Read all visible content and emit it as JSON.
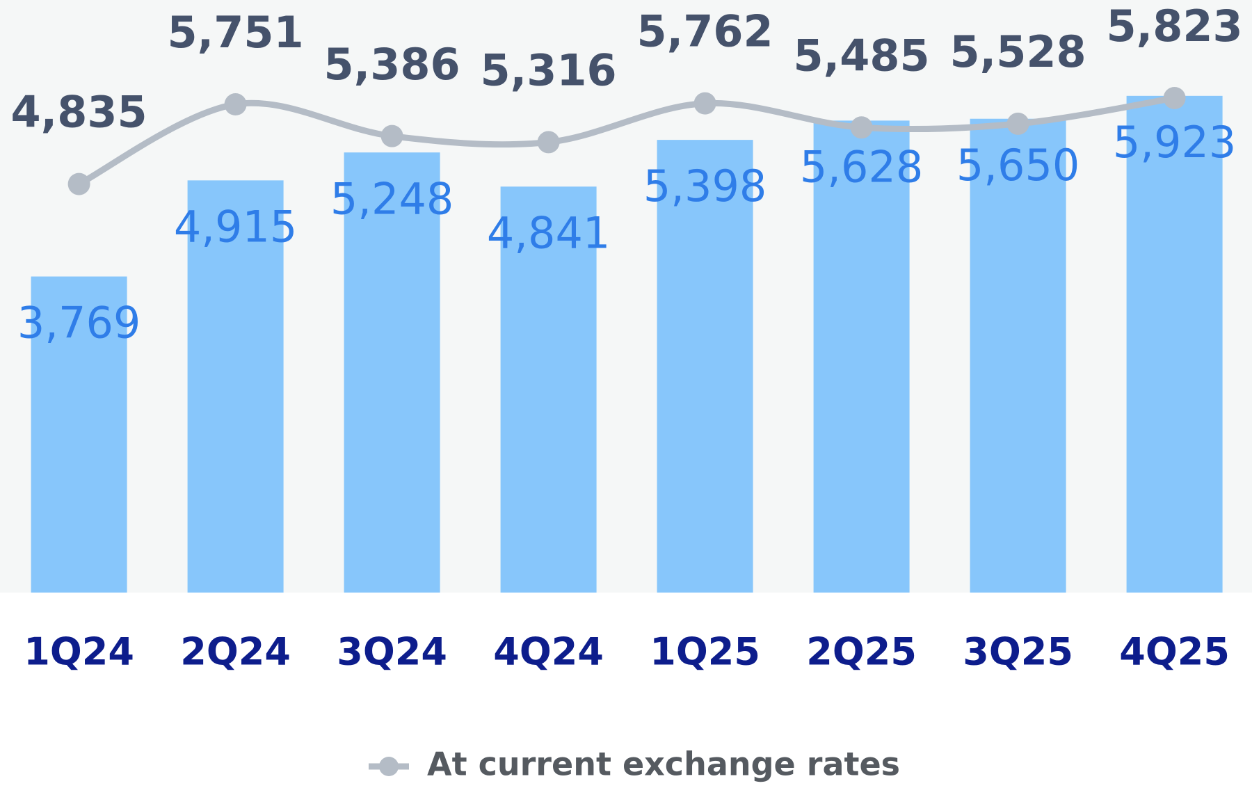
{
  "chart_data": {
    "type": "bar",
    "categories": [
      "1Q24",
      "2Q24",
      "3Q24",
      "4Q24",
      "1Q25",
      "2Q25",
      "3Q25",
      "4Q25"
    ],
    "series": [
      {
        "type": "bar",
        "color": "#87c6fb",
        "values": [
          3769,
          4915,
          5248,
          4841,
          5398,
          5628,
          5650,
          5923
        ],
        "value_labels": [
          "3,769",
          "4,915",
          "5,248",
          "4,841",
          "5,398",
          "5,628",
          "5,650",
          "5,923"
        ]
      },
      {
        "type": "line",
        "name": "At current exchange rates",
        "color": "#b4bcc6",
        "axis": "y2",
        "values": [
          4835,
          5751,
          5386,
          5316,
          5762,
          5485,
          5528,
          5823
        ],
        "value_labels": [
          "4,835",
          "5,751",
          "5,386",
          "5,316",
          "5,762",
          "5,485",
          "5,528",
          "5,823"
        ]
      }
    ],
    "ylim": [
      0,
      7066
    ],
    "y2lim": [
      140,
      6950
    ],
    "grid": false,
    "legend": "bottom"
  }
}
